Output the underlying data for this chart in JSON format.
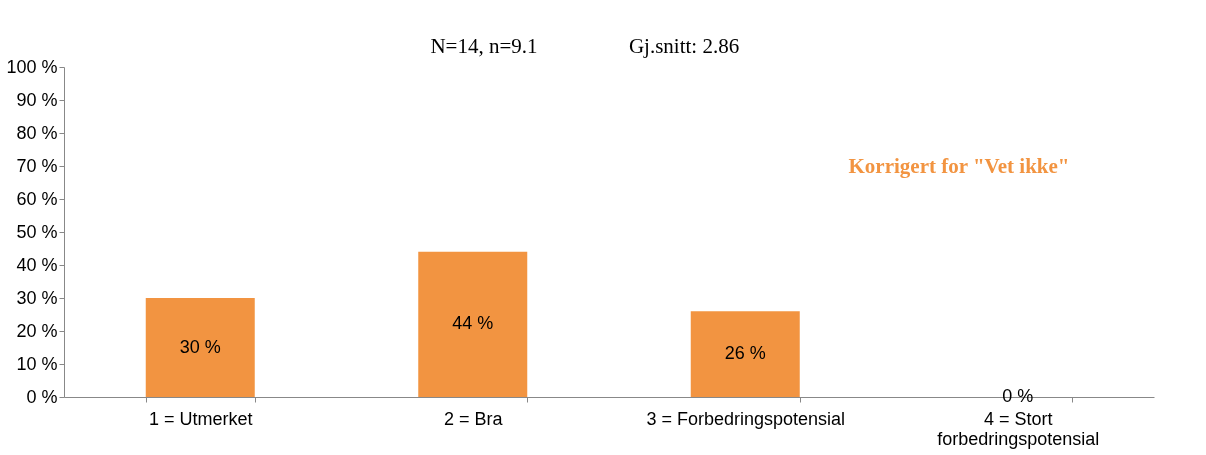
{
  "chart_data": {
    "type": "bar",
    "categories": [
      "1 = Utmerket",
      "2 = Bra",
      "3 = Forbedringspotensial",
      "4 = Stort forbedringspotensial"
    ],
    "values": [
      30,
      44,
      26,
      0
    ],
    "value_labels": [
      "30 %",
      "44 %",
      "26 %",
      "0 %"
    ],
    "color": "#f29441",
    "ylim": [
      0,
      100
    ],
    "yticks": [
      {
        "value": 0,
        "label": "0 %"
      },
      {
        "value": 10,
        "label": "10 %"
      },
      {
        "value": 20,
        "label": "20 %"
      },
      {
        "value": 30,
        "label": "30 %"
      },
      {
        "value": 40,
        "label": "40 %"
      },
      {
        "value": 50,
        "label": "50 %"
      },
      {
        "value": 60,
        "label": "60 %"
      },
      {
        "value": 70,
        "label": "70 %"
      },
      {
        "value": 80,
        "label": "80 %"
      },
      {
        "value": 90,
        "label": "90 %"
      },
      {
        "value": 100,
        "label": "100 %"
      }
    ],
    "grid": false,
    "annotations": [
      "N=14, n=9.1",
      "Gj.snitt: 2.86",
      "Korrigert for \"Vet ikke\""
    ]
  }
}
